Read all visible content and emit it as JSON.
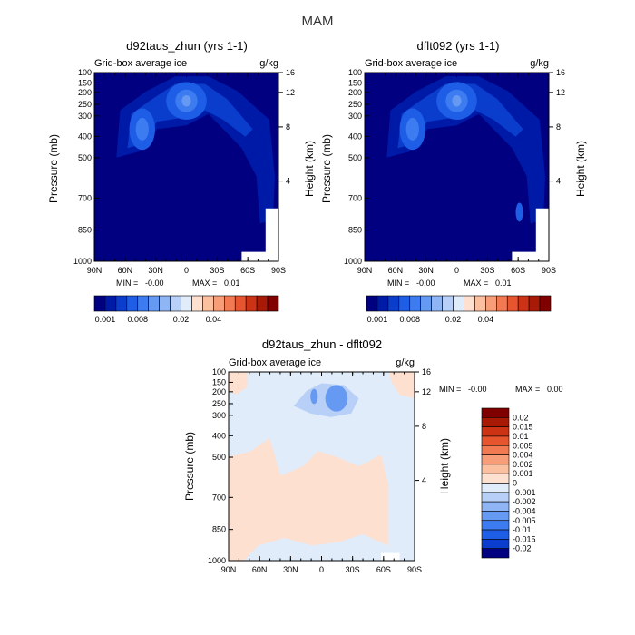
{
  "figure_title": "MAM",
  "chart_data": [
    {
      "type": "heatmap",
      "title": "d92taus_zhun (yrs 1-1)",
      "subtitle_left": "Grid-box average ice",
      "units": "g/kg",
      "xlabel": "",
      "ylabel": "Pressure (mb)",
      "ylabel_right": "Height (km)",
      "x_ticks": [
        "90N",
        "60N",
        "30N",
        "0",
        "30S",
        "60S",
        "90S"
      ],
      "y_ticks": [
        "100",
        "150",
        "200",
        "250",
        "300",
        "400",
        "500",
        "700",
        "850",
        "1000"
      ],
      "y2_ticks": [
        "16",
        "12",
        "8",
        "4"
      ],
      "min_label": "MIN =",
      "min_value": "-0.00",
      "max_label": "MAX =",
      "max_value": "0.01",
      "colorbar_labels": [
        "0.001",
        "0.008",
        "0.02",
        "0.04"
      ],
      "colorbar_colors": [
        "#000080",
        "#001aa8",
        "#0a3dcc",
        "#1e5ee6",
        "#3d7cf0",
        "#6699f2",
        "#8fb5f5",
        "#b8d0f7",
        "#e0ecfa",
        "#fde0cf",
        "#fbc0a0",
        "#f79e78",
        "#f27a52",
        "#e6552e",
        "#cc3314",
        "#a81a05",
        "#800000"
      ]
    },
    {
      "type": "heatmap",
      "title": "dflt092 (yrs 1-1)",
      "subtitle_left": "Grid-box average ice",
      "units": "g/kg",
      "xlabel": "",
      "ylabel": "Pressure (mb)",
      "ylabel_right": "Height (km)",
      "x_ticks": [
        "90N",
        "60N",
        "30N",
        "0",
        "30S",
        "60S",
        "90S"
      ],
      "y_ticks": [
        "100",
        "150",
        "200",
        "250",
        "300",
        "400",
        "500",
        "700",
        "850",
        "1000"
      ],
      "y2_ticks": [
        "16",
        "12",
        "8",
        "4"
      ],
      "min_label": "MIN =",
      "min_value": "-0.00",
      "max_label": "MAX =",
      "max_value": "0.01",
      "colorbar_labels": [
        "0.001",
        "0.008",
        "0.02",
        "0.04"
      ],
      "colorbar_colors": [
        "#000080",
        "#001aa8",
        "#0a3dcc",
        "#1e5ee6",
        "#3d7cf0",
        "#6699f2",
        "#8fb5f5",
        "#b8d0f7",
        "#e0ecfa",
        "#fde0cf",
        "#fbc0a0",
        "#f79e78",
        "#f27a52",
        "#e6552e",
        "#cc3314",
        "#a81a05",
        "#800000"
      ]
    },
    {
      "type": "heatmap",
      "title": "d92taus_zhun - dflt092",
      "subtitle_left": "Grid-box average ice",
      "units": "g/kg",
      "xlabel": "",
      "ylabel": "Pressure (mb)",
      "ylabel_right": "Height (km)",
      "x_ticks": [
        "90N",
        "60N",
        "30N",
        "0",
        "30S",
        "60S",
        "90S"
      ],
      "y_ticks": [
        "100",
        "150",
        "200",
        "250",
        "300",
        "400",
        "500",
        "700",
        "850",
        "1000"
      ],
      "y2_ticks": [
        "16",
        "12",
        "8",
        "4"
      ],
      "min_label": "MIN =",
      "min_value": "-0.00",
      "max_label": "MAX =",
      "max_value": "0.00",
      "colorbar_labels": [
        "0.02",
        "0.015",
        "0.01",
        "0.005",
        "0.004",
        "0.002",
        "0.001",
        "0",
        "-0.001",
        "-0.002",
        "-0.004",
        "-0.005",
        "-0.01",
        "-0.015",
        "-0.02"
      ],
      "colorbar_colors": [
        "#800000",
        "#a81a05",
        "#cc3314",
        "#e6552e",
        "#f27a52",
        "#f79e78",
        "#fbc0a0",
        "#fde0cf",
        "#e0ecfa",
        "#b8d0f7",
        "#8fb5f5",
        "#6699f2",
        "#3d7cf0",
        "#1e5ee6",
        "#0a3dcc",
        "#000080"
      ]
    }
  ]
}
